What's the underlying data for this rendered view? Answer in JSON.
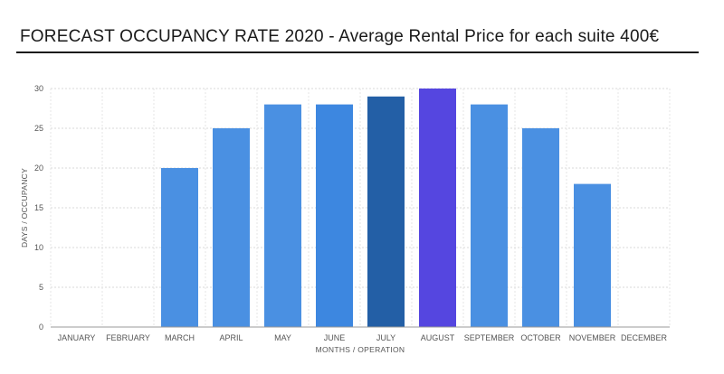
{
  "chart_data": {
    "type": "bar",
    "title": "FORECAST OCCUPANCY RATE 2020 - Average Rental Price for each suite 400€",
    "xlabel": "MONTHS / OPERATION",
    "ylabel": "DAYS / OCCUPANCY",
    "ylim": [
      0,
      30
    ],
    "yticks": [
      "0",
      "5",
      "10",
      "15",
      "20",
      "25",
      "30"
    ],
    "grid": true,
    "categories": [
      "JANUARY",
      "FEBRUARY",
      "MARCH",
      "APRIL",
      "MAY",
      "JUNE",
      "JULY",
      "AUGUST",
      "SEPTEMBER",
      "OCTOBER",
      "NOVEMBER",
      "DECEMBER"
    ],
    "values": [
      0,
      0,
      20,
      25,
      28,
      28,
      29,
      30,
      28,
      25,
      18,
      0
    ],
    "colors": [
      "#4a90e2",
      "#4a90e2",
      "#4a90e2",
      "#4a90e2",
      "#4a90e2",
      "#3d87e0",
      "#235fa6",
      "#5546e0",
      "#4a90e2",
      "#4a90e2",
      "#4a90e2",
      "#4a90e2"
    ]
  }
}
